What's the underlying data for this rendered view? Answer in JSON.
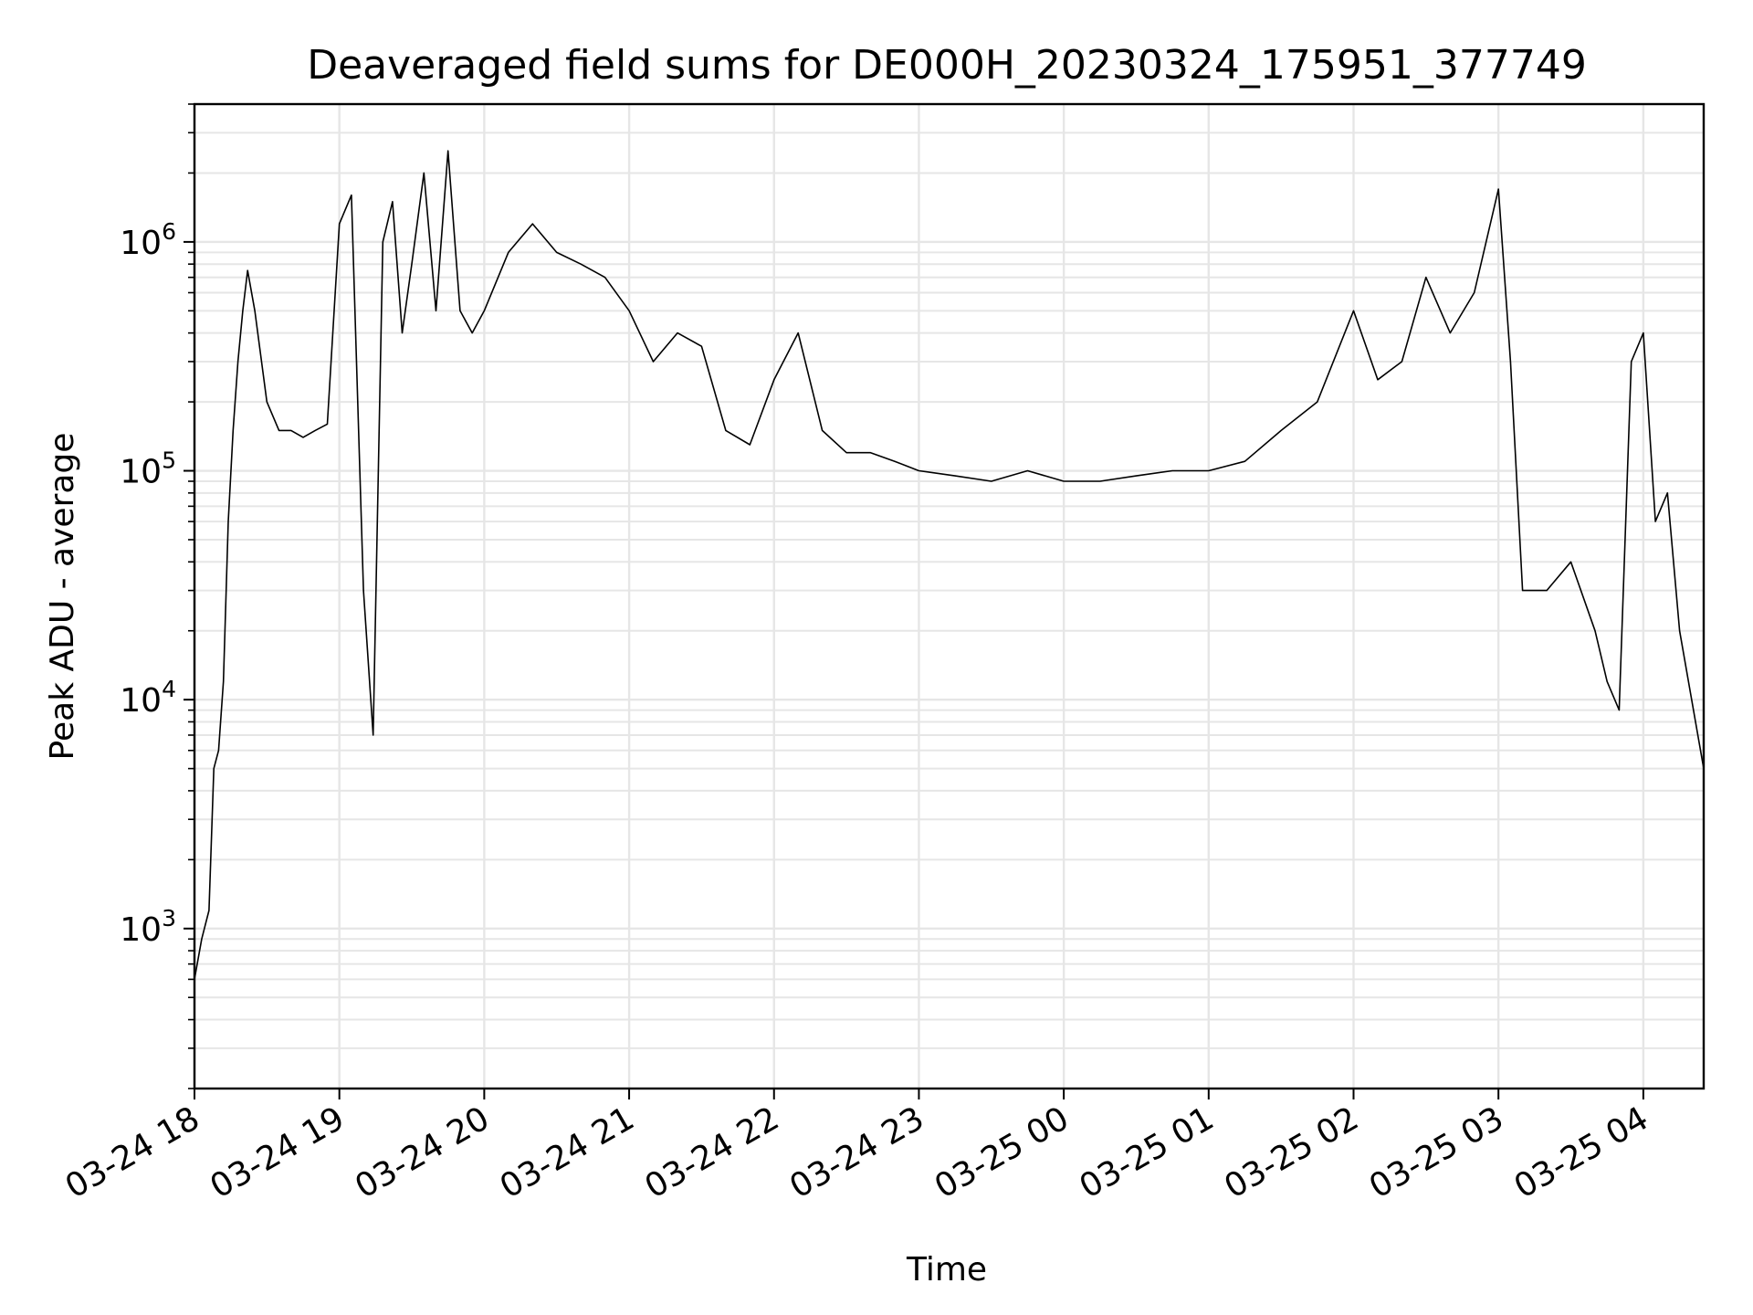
{
  "chart_data": {
    "type": "line",
    "title": "Deaveraged field sums for DE000H_20230324_175951_377749",
    "xlabel": "Time",
    "ylabel": "Peak ADU - average",
    "yscale": "log",
    "ylim": [
      200,
      4000000
    ],
    "xlim": [
      "2023-03-24 18:00",
      "2023-03-25 04:25"
    ],
    "grid": true,
    "line_color": "#000000",
    "grid_color": "#e6e6e6",
    "x_ticks": [
      "03-24 18",
      "03-24 19",
      "03-24 20",
      "03-24 21",
      "03-24 22",
      "03-24 23",
      "03-25 00",
      "03-25 01",
      "03-25 02",
      "03-25 03",
      "03-25 04"
    ],
    "y_ticks": [
      {
        "base": "10",
        "exp": "3"
      },
      {
        "base": "10",
        "exp": "4"
      },
      {
        "base": "10",
        "exp": "5"
      },
      {
        "base": "10",
        "exp": "6"
      }
    ],
    "series": [
      {
        "x": [
          "03-24 18:00",
          "03-24 18:03",
          "03-24 18:06",
          "03-24 18:08",
          "03-24 18:10",
          "03-24 18:12",
          "03-24 18:14",
          "03-24 18:16",
          "03-24 18:18",
          "03-24 18:20",
          "03-24 18:22",
          "03-24 18:25",
          "03-24 18:30",
          "03-24 18:35",
          "03-24 18:40",
          "03-24 18:45",
          "03-24 18:50",
          "03-24 18:55",
          "03-24 19:00",
          "03-24 19:05",
          "03-24 19:10",
          "03-24 19:14",
          "03-24 19:18",
          "03-24 19:22",
          "03-24 19:26",
          "03-24 19:30",
          "03-24 19:35",
          "03-24 19:40",
          "03-24 19:45",
          "03-24 19:50",
          "03-24 19:55",
          "03-24 20:00",
          "03-24 20:10",
          "03-24 20:20",
          "03-24 20:30",
          "03-24 20:40",
          "03-24 20:50",
          "03-24 21:00",
          "03-24 21:10",
          "03-24 21:20",
          "03-24 21:30",
          "03-24 21:40",
          "03-24 21:50",
          "03-24 22:00",
          "03-24 22:10",
          "03-24 22:20",
          "03-24 22:30",
          "03-24 22:40",
          "03-24 22:50",
          "03-24 23:00",
          "03-24 23:15",
          "03-24 23:30",
          "03-24 23:45",
          "03-25 00:00",
          "03-25 00:15",
          "03-25 00:30",
          "03-25 00:45",
          "03-25 01:00",
          "03-25 01:15",
          "03-25 01:30",
          "03-25 01:45",
          "03-25 02:00",
          "03-25 02:10",
          "03-25 02:20",
          "03-25 02:30",
          "03-25 02:40",
          "03-25 02:50",
          "03-25 03:00",
          "03-25 03:05",
          "03-25 03:10",
          "03-25 03:20",
          "03-25 03:30",
          "03-25 03:40",
          "03-25 03:45",
          "03-25 03:50",
          "03-25 03:55",
          "03-25 04:00",
          "03-25 04:05",
          "03-25 04:10",
          "03-25 04:15",
          "03-25 04:20",
          "03-25 04:25"
        ],
        "y": [
          600,
          900,
          1200,
          5000,
          6000,
          12000,
          60000,
          150000,
          300000,
          500000,
          750000,
          500000,
          200000,
          150000,
          150000,
          140000,
          150000,
          160000,
          1200000,
          1600000,
          30000,
          7000,
          1000000,
          1500000,
          400000,
          800000,
          2000000,
          500000,
          2500000,
          500000,
          400000,
          500000,
          900000,
          1200000,
          900000,
          800000,
          700000,
          500000,
          300000,
          400000,
          350000,
          150000,
          130000,
          250000,
          400000,
          150000,
          120000,
          120000,
          110000,
          100000,
          95000,
          90000,
          100000,
          90000,
          90000,
          95000,
          100000,
          100000,
          110000,
          150000,
          200000,
          500000,
          250000,
          300000,
          700000,
          400000,
          600000,
          1700000,
          300000,
          30000,
          30000,
          40000,
          20000,
          12000,
          9000,
          300000,
          400000,
          60000,
          80000,
          20000,
          10000,
          5000
        ]
      }
    ]
  }
}
